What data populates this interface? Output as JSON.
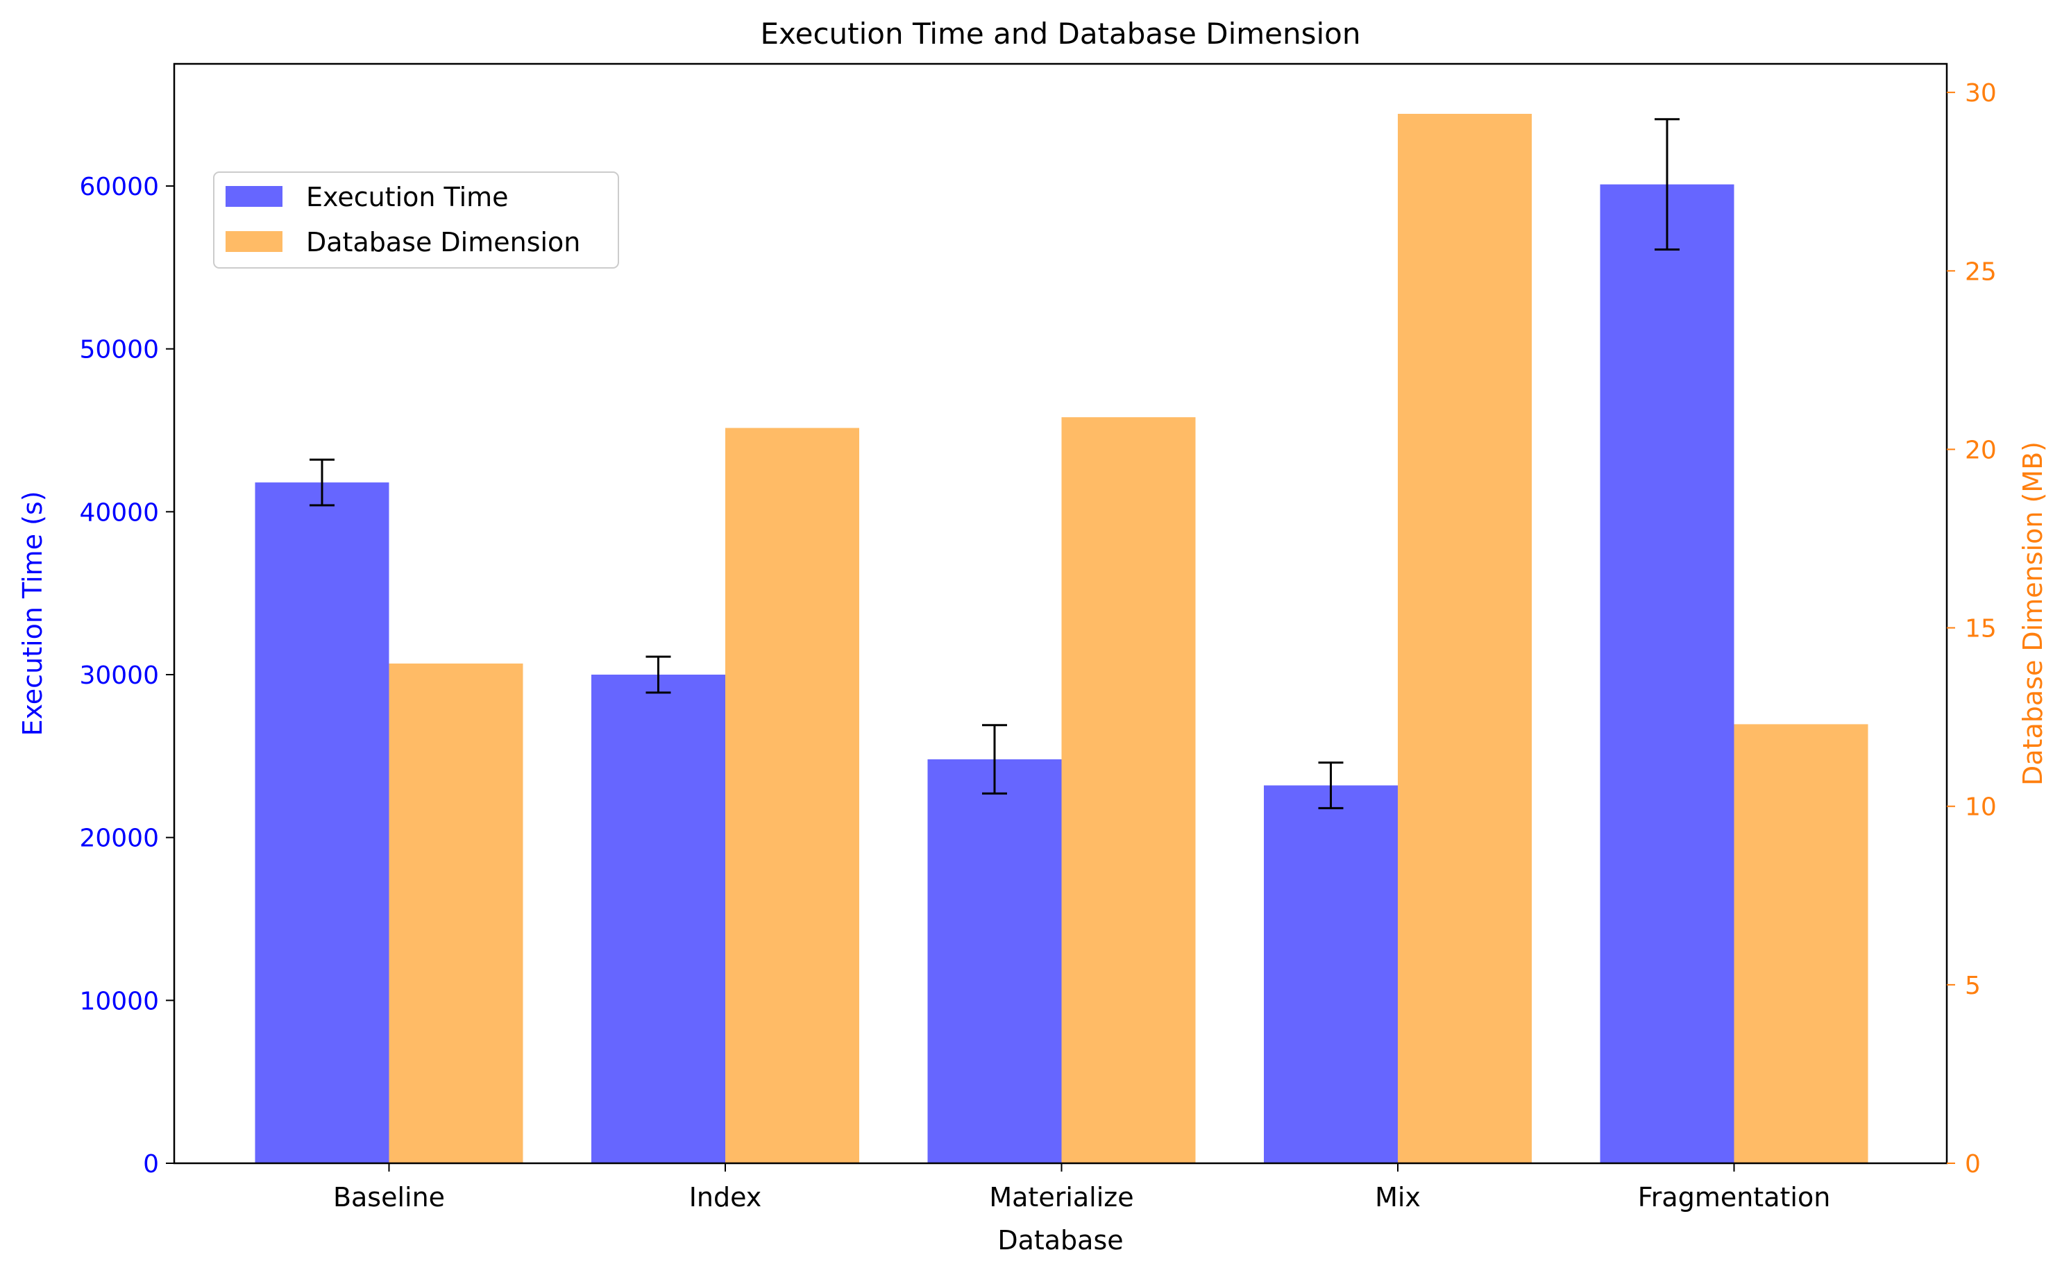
{
  "chart_data": {
    "type": "bar",
    "title": "Execution Time and Database Dimension",
    "xlabel": "Database",
    "categories": [
      "Baseline",
      "Index",
      "Materialize",
      "Mix",
      "Fragmentation"
    ],
    "y_left": {
      "label": "Execution Time (s)",
      "ylim": [
        0,
        67500
      ],
      "ticks": [
        0,
        10000,
        20000,
        30000,
        40000,
        50000,
        60000
      ],
      "color": "#0000ff"
    },
    "y_right": {
      "label": "Database Dimension (MB)",
      "ylim": [
        0,
        30.8
      ],
      "ticks": [
        0,
        5,
        10,
        15,
        20,
        25,
        30
      ],
      "color": "#ff7f0e"
    },
    "series": [
      {
        "name": "Execution Time",
        "axis": "left",
        "color": "#6666ff",
        "values": [
          41800,
          30000,
          24800,
          23200,
          60100
        ],
        "errors": [
          1400,
          1100,
          2100,
          1400,
          4000
        ]
      },
      {
        "name": "Database Dimension",
        "axis": "right",
        "color": "#ffbb66",
        "values": [
          14.0,
          20.6,
          20.9,
          29.4,
          12.3
        ]
      }
    ],
    "legend": {
      "position": "upper-left"
    },
    "grid": false
  }
}
